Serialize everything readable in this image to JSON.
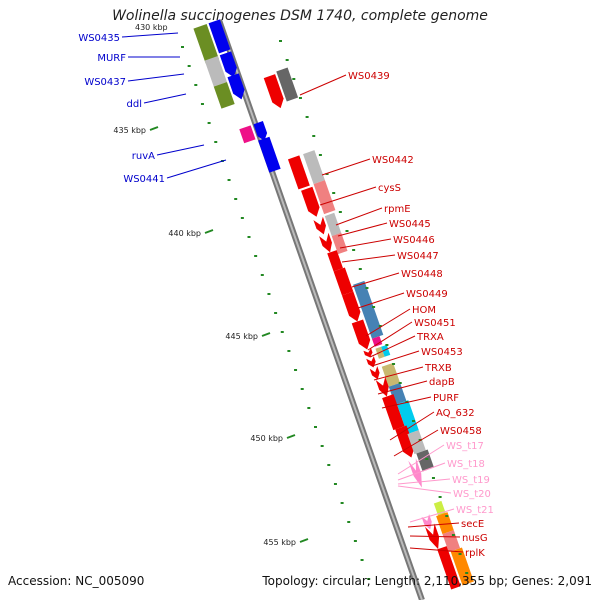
{
  "title": "Wolinella succinogenes DSM 1740, complete genome",
  "footer": {
    "accession": "Accession: NC_005090",
    "summary": "Topology: circular; Length: 2,110,355 bp; Genes: 2,091"
  },
  "colors": {
    "forward_label": "#0000cc",
    "reverse_label": "#cc0000",
    "trna_label": "#ff88cc",
    "backbone": "#888888",
    "tick": "#228822"
  },
  "kbp_ticks": [
    "435 kbp",
    "440 kbp",
    "445 kbp",
    "450 kbp",
    "455 kbp"
  ],
  "left_labels": [
    {
      "text": "WS0435",
      "color": "#0000cc"
    },
    {
      "text": "MURF",
      "color": "#0000cc"
    },
    {
      "text": "WS0437",
      "color": "#0000cc"
    },
    {
      "text": "ddl",
      "color": "#0000cc"
    },
    {
      "text": "ruvA",
      "color": "#0000cc"
    },
    {
      "text": "WS0441",
      "color": "#0000cc"
    }
  ],
  "right_labels": [
    {
      "text": "WS0439",
      "color": "#cc0000"
    },
    {
      "text": "WS0442",
      "color": "#cc0000"
    },
    {
      "text": "cysS",
      "color": "#cc0000"
    },
    {
      "text": "rpmE",
      "color": "#cc0000"
    },
    {
      "text": "WS0445",
      "color": "#cc0000"
    },
    {
      "text": "WS0446",
      "color": "#cc0000"
    },
    {
      "text": "WS0447",
      "color": "#cc0000"
    },
    {
      "text": "WS0448",
      "color": "#cc0000"
    },
    {
      "text": "WS0449",
      "color": "#cc0000"
    },
    {
      "text": "HOM",
      "color": "#cc0000"
    },
    {
      "text": "WS0451",
      "color": "#cc0000"
    },
    {
      "text": "TRXA",
      "color": "#cc0000"
    },
    {
      "text": "WS0453",
      "color": "#cc0000"
    },
    {
      "text": "TRXB",
      "color": "#cc0000"
    },
    {
      "text": "dapB",
      "color": "#cc0000"
    },
    {
      "text": "PURF",
      "color": "#cc0000"
    },
    {
      "text": "AQ_632",
      "color": "#cc0000"
    },
    {
      "text": "WS0458",
      "color": "#cc0000"
    },
    {
      "text": "WS_t17",
      "color": "#ff99cc"
    },
    {
      "text": "WS_t18",
      "color": "#ff99cc"
    },
    {
      "text": "WS_t19",
      "color": "#ff99cc"
    },
    {
      "text": "WS_t20",
      "color": "#ff99cc"
    },
    {
      "text": "WS_t21",
      "color": "#ff99cc"
    },
    {
      "text": "secE",
      "color": "#cc0000"
    },
    {
      "text": "nusG",
      "color": "#cc0000"
    },
    {
      "text": "rplK",
      "color": "#cc0000"
    }
  ]
}
